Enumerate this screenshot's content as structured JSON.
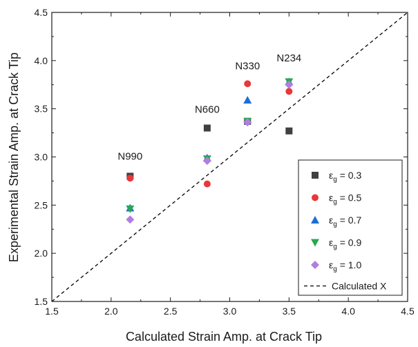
{
  "chart_data": {
    "type": "scatter",
    "xlabel": "Calculated Strain Amp. at Crack Tip",
    "ylabel": "Experimental Strain Amp. at Crack Tip",
    "xlim": [
      1.5,
      4.5
    ],
    "ylim": [
      1.5,
      4.5
    ],
    "xticks": [
      "1.5",
      "2.0",
      "2.5",
      "3.0",
      "3.5",
      "4.0",
      "4.5"
    ],
    "yticks": [
      "1.5",
      "2.0",
      "2.5",
      "3.0",
      "3.5",
      "4.0",
      "4.5"
    ],
    "grid": false,
    "legend_position": "bottom-right",
    "series": [
      {
        "name": "ε_g = 0.3",
        "sym": "ε",
        "sub": "g",
        "value_text": " = 0.3",
        "marker": "square",
        "color": "#404040",
        "x": [
          2.16,
          2.81,
          3.15,
          3.5
        ],
        "y": [
          2.8,
          3.3,
          3.37,
          3.27
        ]
      },
      {
        "name": "ε_g = 0.5",
        "sym": "ε",
        "sub": "g",
        "value_text": " = 0.5",
        "marker": "circle",
        "color": "#e8383b",
        "x": [
          2.16,
          2.81,
          3.15,
          3.5
        ],
        "y": [
          2.78,
          2.72,
          3.76,
          3.68
        ]
      },
      {
        "name": "ε_g = 0.7",
        "sym": "ε",
        "sub": "g",
        "value_text": " = 0.7",
        "marker": "triangle-up",
        "color": "#1a6fd4",
        "x": [
          2.16,
          2.81,
          3.15,
          3.5
        ],
        "y": [
          2.47,
          2.99,
          3.59,
          3.78
        ]
      },
      {
        "name": "ε_g = 0.9",
        "sym": "ε",
        "sub": "g",
        "value_text": " = 0.9",
        "marker": "triangle-down",
        "color": "#2aa84f",
        "x": [
          2.16,
          2.81,
          3.15,
          3.5
        ],
        "y": [
          2.46,
          2.98,
          3.37,
          3.78
        ]
      },
      {
        "name": "ε_g = 1.0",
        "sym": "ε",
        "sub": "g",
        "value_text": " = 1.0",
        "marker": "diamond",
        "color": "#b07ee0",
        "x": [
          2.16,
          2.81,
          3.15,
          3.5
        ],
        "y": [
          2.35,
          2.96,
          3.36,
          3.75
        ]
      }
    ],
    "reference_line": {
      "name": "Calculated X",
      "style": "dashed",
      "color": "#000000",
      "x": [
        1.5,
        4.5
      ],
      "y": [
        1.5,
        4.5
      ]
    },
    "annotations": [
      {
        "text": "N990",
        "x": 2.16,
        "y": 2.97
      },
      {
        "text": "N660",
        "x": 2.81,
        "y": 3.46
      },
      {
        "text": "N330",
        "x": 3.15,
        "y": 3.91
      },
      {
        "text": "N234",
        "x": 3.5,
        "y": 3.99
      }
    ]
  }
}
